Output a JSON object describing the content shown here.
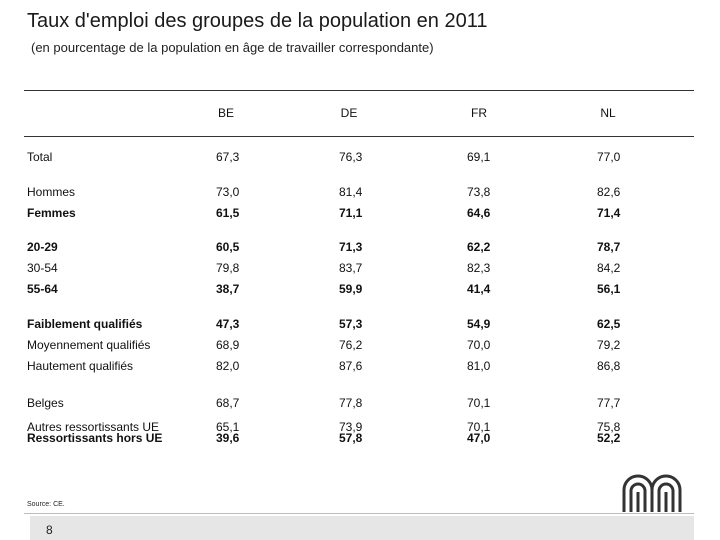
{
  "title": "Taux d'emploi des groupes de la population en 2011",
  "subtitle": "(en pourcentage de la population en âge de travailler correspondante)",
  "columns": [
    "BE",
    "DE",
    "FR",
    "NL"
  ],
  "rows": [
    {
      "label": "Total",
      "values": [
        "67,3",
        "76,3",
        "69,1",
        "77,0"
      ]
    },
    {
      "label": "Hommes",
      "values": [
        "73,0",
        "81,4",
        "73,8",
        "82,6"
      ]
    },
    {
      "label": "Femmes",
      "values": [
        "61,5",
        "71,1",
        "64,6",
        "71,4"
      ]
    },
    {
      "label": "20-29",
      "values": [
        "60,5",
        "71,3",
        "62,2",
        "78,7"
      ]
    },
    {
      "label": "30-54",
      "values": [
        "79,8",
        "83,7",
        "82,3",
        "84,2"
      ]
    },
    {
      "label": "55-64",
      "values": [
        "38,7",
        "59,9",
        "41,4",
        "56,1"
      ]
    },
    {
      "label": "Faiblement qualifiés",
      "values": [
        "47,3",
        "57,3",
        "54,9",
        "62,5"
      ]
    },
    {
      "label": "Moyennement qualifiés",
      "values": [
        "68,9",
        "76,2",
        "70,0",
        "79,2"
      ]
    },
    {
      "label": "Hautement qualifiés",
      "values": [
        "82,0",
        "87,6",
        "81,0",
        "86,8"
      ]
    },
    {
      "label": "Belges",
      "values": [
        "68,7",
        "77,8",
        "70,1",
        "77,7"
      ]
    },
    {
      "label": "Autres ressortissants UE",
      "values": [
        "65,1",
        "73,9",
        "70,1",
        "75,8"
      ]
    },
    {
      "label": "Ressortissants hors UE",
      "values": [
        "39,6",
        "57,8",
        "47,0",
        "52,2"
      ]
    }
  ],
  "source": "Source: CE.",
  "page_number": "8"
}
